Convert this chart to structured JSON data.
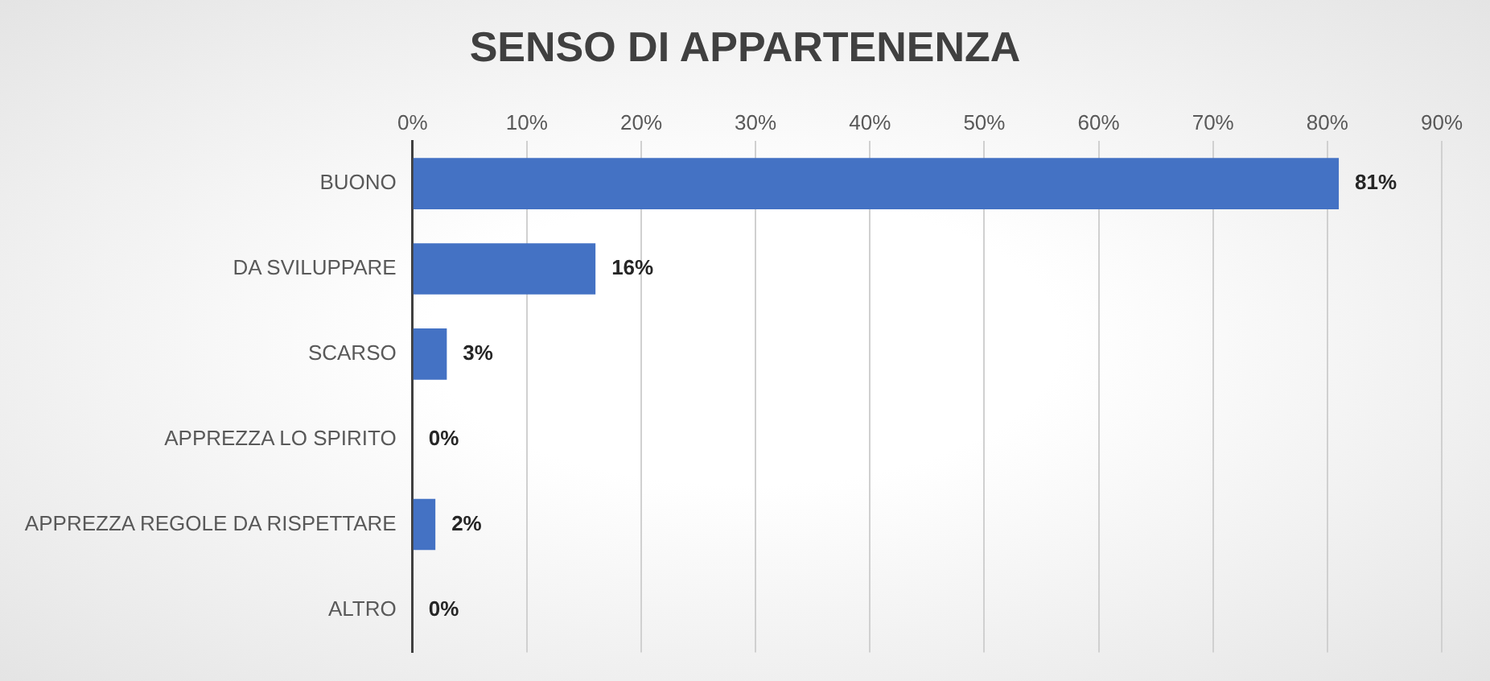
{
  "chart_data": {
    "type": "bar",
    "orientation": "horizontal",
    "title": "SENSO DI APPARTENENZA",
    "categories": [
      "BUONO",
      "DA SVILUPPARE",
      "SCARSO",
      "APPREZZA LO SPIRITO",
      "APPREZZA REGOLE DA RISPETTARE",
      "ALTRO"
    ],
    "values": [
      81,
      16,
      3,
      0,
      2,
      0
    ],
    "value_labels": [
      "81%",
      "16%",
      "3%",
      "0%",
      "2%",
      "0%"
    ],
    "color": "#4472c4",
    "xlim": [
      0,
      90
    ],
    "xticks": [
      {
        "value": 0,
        "label": "0%"
      },
      {
        "value": 10,
        "label": "10%"
      },
      {
        "value": 20,
        "label": "20%"
      },
      {
        "value": 30,
        "label": "30%"
      },
      {
        "value": 40,
        "label": "40%"
      },
      {
        "value": 50,
        "label": "50%"
      },
      {
        "value": 60,
        "label": "60%"
      },
      {
        "value": 70,
        "label": "70%"
      },
      {
        "value": 80,
        "label": "80%"
      },
      {
        "value": 90,
        "label": "90%"
      }
    ],
    "grid": "x",
    "legend": false
  }
}
